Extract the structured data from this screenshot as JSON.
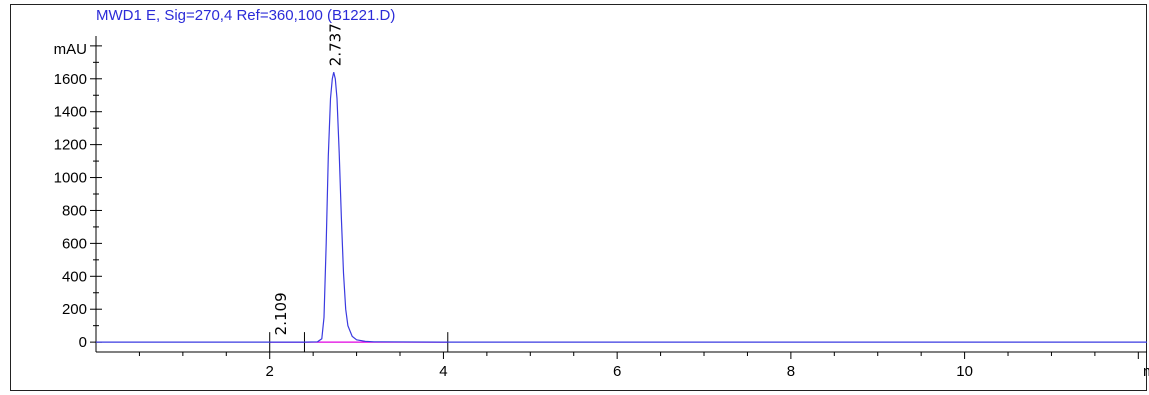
{
  "chart_data": {
    "type": "line",
    "title": "MWD1 E, Sig=270,4 Ref=360,100 (B1221.D)",
    "ylabel": "mAU",
    "xunit": "min",
    "xlim": [
      0,
      12.1
    ],
    "ylim": [
      -60,
      1860
    ],
    "xticks": [
      2,
      4,
      6,
      8,
      10
    ],
    "yticks": [
      0,
      200,
      400,
      600,
      800,
      1000,
      1200,
      1400,
      1600
    ],
    "grid": false,
    "colors": {
      "signal": "#3a3ae0",
      "baseline": "#e000e0",
      "title": "#2b2bd8"
    },
    "series": [
      {
        "x": [
          0.0,
          1.0,
          2.0,
          2.4,
          2.55,
          2.6,
          2.625,
          2.65,
          2.675,
          2.7,
          2.72,
          2.737,
          2.755,
          2.775,
          2.8,
          2.825,
          2.85,
          2.875,
          2.9,
          2.95,
          3.0,
          3.1,
          3.2,
          4.0,
          6.0,
          8.0,
          10.0,
          12.1
        ],
        "y": [
          0,
          0,
          0,
          0,
          2,
          20,
          150,
          600,
          1130,
          1480,
          1600,
          1640,
          1600,
          1480,
          1150,
          750,
          420,
          200,
          100,
          35,
          14,
          5,
          2,
          0,
          0,
          0,
          0,
          0
        ]
      }
    ],
    "baseline_segments": [
      {
        "x": [
          2.0,
          2.4
        ],
        "y": [
          0,
          0
        ]
      },
      {
        "x": [
          2.4,
          4.05
        ],
        "y": [
          0,
          0
        ]
      }
    ],
    "markers_x": [
      2.0,
      2.4,
      4.05
    ],
    "peaks": [
      {
        "label": "2.109",
        "x": 2.109,
        "y": 5
      },
      {
        "label": "2.737",
        "x": 2.737,
        "y": 1640
      }
    ]
  }
}
